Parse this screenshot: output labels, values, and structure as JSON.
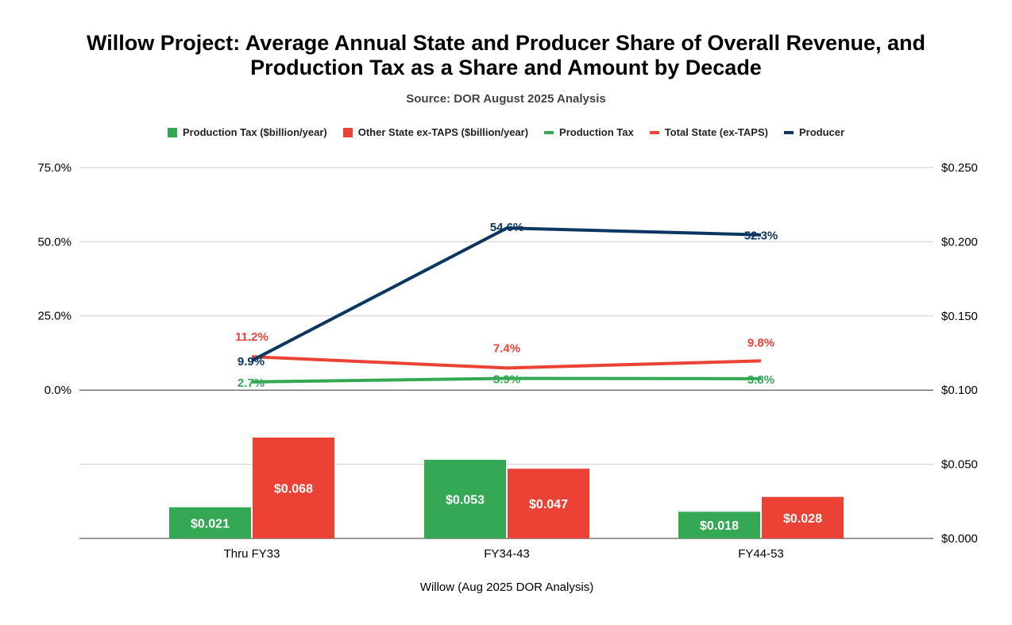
{
  "chart_data": {
    "type": "bar+line",
    "title_line1": "Willow Project: Average Annual State and Producer Share of Overall Revenue, and",
    "title_line2": "Production Tax as a Share and Amount by Decade",
    "subtitle": "Source: DOR August 2025 Analysis",
    "xlabel": "Willow (Aug 2025 DOR Analysis)",
    "categories": [
      "Thru FY33",
      "FY34-43",
      "FY44-53"
    ],
    "left_axis": {
      "range": [
        0,
        75
      ],
      "ticks": [
        "0.0%",
        "25.0%",
        "50.0%",
        "75.0%"
      ],
      "tick_values": [
        0,
        25,
        50,
        75
      ]
    },
    "right_axis": {
      "range": [
        0,
        0.25
      ],
      "ticks": [
        "$0.000",
        "$0.050",
        "$0.100",
        "$0.150",
        "$0.200",
        "$0.250"
      ],
      "tick_values": [
        0,
        0.05,
        0.1,
        0.15,
        0.2,
        0.25
      ]
    },
    "bar_series": [
      {
        "name": "Production Tax ($billion/year)",
        "color": "#34a853",
        "values": [
          0.021,
          0.053,
          0.018
        ],
        "labels": [
          "$0.021",
          "$0.053",
          "$0.018"
        ]
      },
      {
        "name": "Other State ex-TAPS ($billion/year)",
        "color": "#ea4335",
        "values": [
          0.068,
          0.047,
          0.028
        ],
        "labels": [
          "$0.068",
          "$0.047",
          "$0.028"
        ]
      }
    ],
    "line_series": [
      {
        "name": "Production Tax",
        "color": "#34a853",
        "values": [
          2.7,
          3.9,
          3.8
        ],
        "labels": [
          "2.7%",
          "3.9%",
          "3.8%"
        ]
      },
      {
        "name": "Total State (ex-TAPS)",
        "color": "#ea4335",
        "values": [
          11.2,
          7.4,
          9.8
        ],
        "labels": [
          "11.2%",
          "7.4%",
          "9.8%"
        ]
      },
      {
        "name": "Producer",
        "color": "#0b3661",
        "values": [
          9.9,
          54.6,
          52.3
        ],
        "labels": [
          "9.9%",
          "54.6%",
          "52.3%"
        ]
      }
    ],
    "grid": true,
    "legend_position": "top"
  }
}
